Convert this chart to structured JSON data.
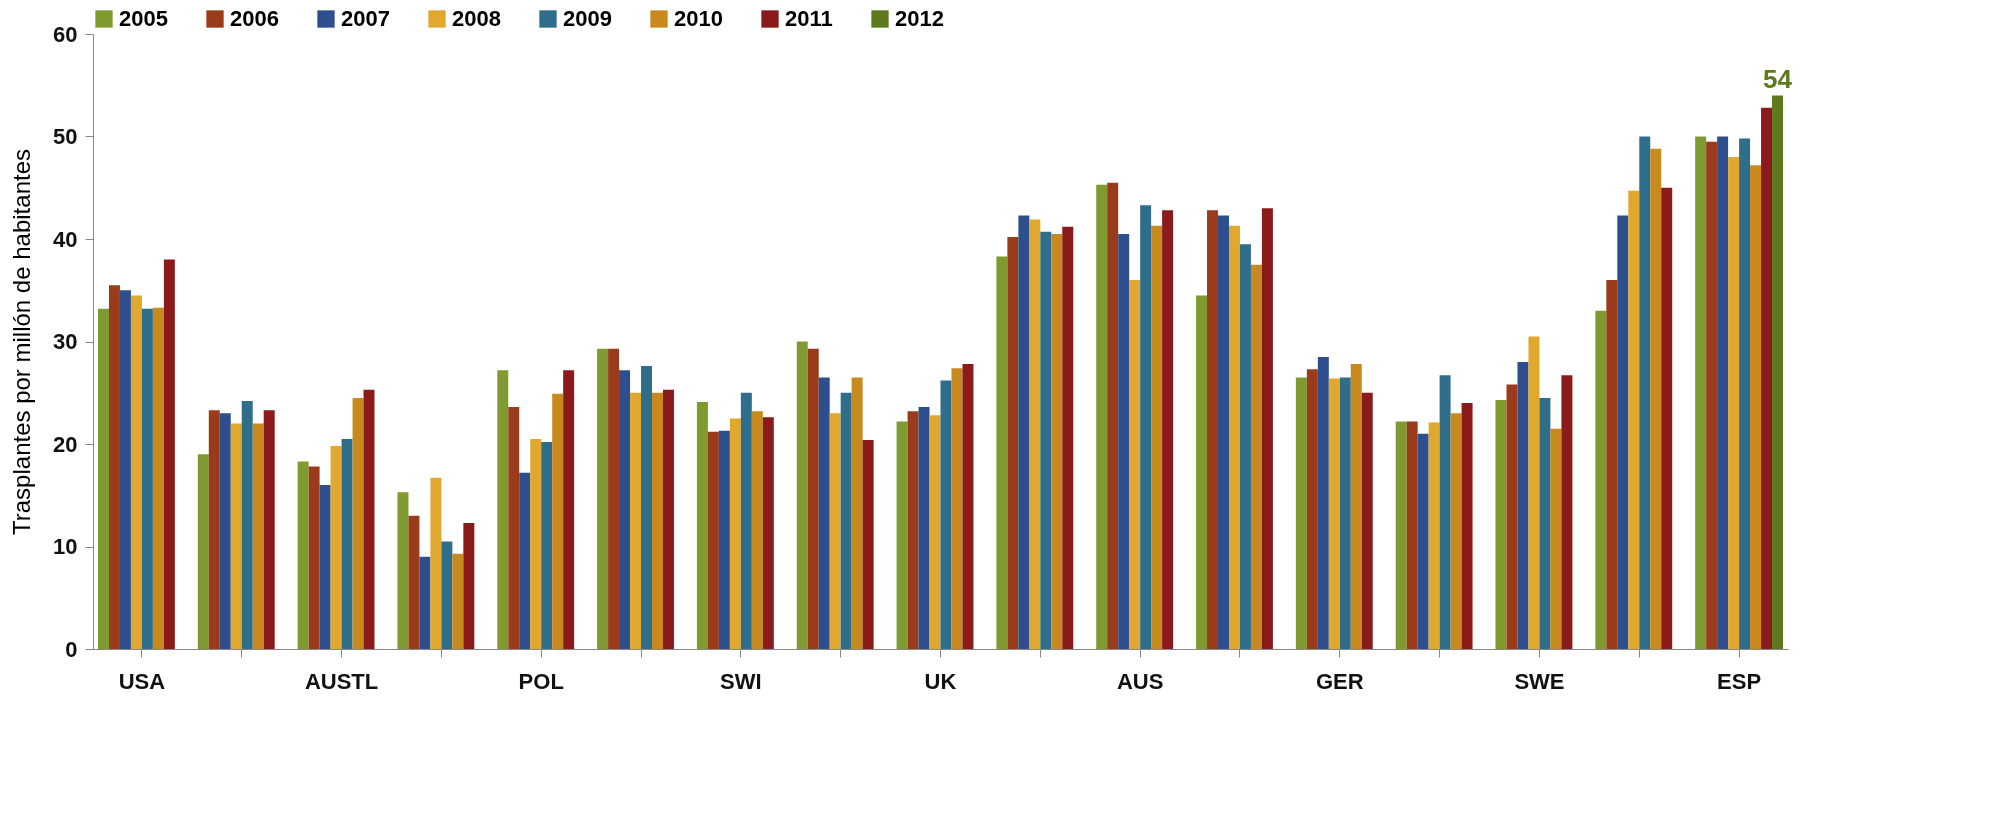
{
  "chart_data": {
    "type": "bar",
    "ylabel": "Trasplantes por millón de habitantes",
    "categories": [
      "USA",
      null,
      "AUSTL",
      null,
      "POL",
      null,
      "SWI",
      null,
      "UK",
      null,
      "AUS",
      null,
      "GER",
      null,
      "SWE",
      null,
      "ESP"
    ],
    "ylim": [
      0,
      60
    ],
    "yticks": [
      0,
      10,
      20,
      30,
      40,
      50,
      60
    ],
    "grid": false,
    "legend": "top",
    "series": [
      {
        "name": "2005",
        "color": "#7f9a2e",
        "values": [
          33.2,
          19,
          18.3,
          15.3,
          27.2,
          29.3,
          24.1,
          30,
          22.2,
          38.3,
          45.3,
          34.5,
          26.5,
          22.2,
          24.3,
          33,
          50
        ]
      },
      {
        "name": "2006",
        "color": "#9a3b1c",
        "values": [
          35.5,
          23.3,
          17.8,
          13,
          23.6,
          29.3,
          21.2,
          29.3,
          23.2,
          40.2,
          45.5,
          42.8,
          27.3,
          22.2,
          25.8,
          36,
          49.5
        ]
      },
      {
        "name": "2007",
        "color": "#2d4f8e",
        "values": [
          35,
          23,
          16,
          9,
          17.2,
          27.2,
          21.3,
          26.5,
          23.6,
          42.3,
          40.5,
          42.3,
          28.5,
          21,
          28,
          42.3,
          50
        ]
      },
      {
        "name": "2008",
        "color": "#e0a82e",
        "values": [
          34.5,
          22,
          19.8,
          16.7,
          20.5,
          25,
          22.5,
          23,
          22.8,
          41.9,
          36,
          41.3,
          26.4,
          22.1,
          30.5,
          44.7,
          48
        ]
      },
      {
        "name": "2009",
        "color": "#2e6e8a",
        "values": [
          33.2,
          24.2,
          20.5,
          10.5,
          20.2,
          27.6,
          25,
          25,
          26.2,
          40.7,
          43.3,
          39.5,
          26.5,
          26.7,
          24.5,
          50,
          49.8
        ]
      },
      {
        "name": "2010",
        "color": "#c88a1e",
        "values": [
          33.3,
          22,
          24.5,
          9.3,
          24.9,
          25,
          23.2,
          26.5,
          27.4,
          40.5,
          41.3,
          37.5,
          27.8,
          23,
          21.5,
          48.8,
          47.2
        ]
      },
      {
        "name": "2011",
        "color": "#8b1a1a",
        "values": [
          38,
          23.3,
          25.3,
          12.3,
          27.2,
          25.3,
          22.6,
          20.4,
          27.8,
          41.2,
          42.8,
          43,
          25,
          24,
          26.7,
          45,
          52.8
        ]
      },
      {
        "name": "2012",
        "color": "#5e7a1e",
        "values": [
          null,
          null,
          null,
          null,
          null,
          null,
          null,
          null,
          null,
          null,
          null,
          null,
          null,
          null,
          null,
          null,
          54
        ],
        "value_labels": [
          null,
          null,
          null,
          null,
          null,
          null,
          null,
          null,
          null,
          null,
          null,
          null,
          null,
          null,
          null,
          null,
          "54"
        ]
      }
    ]
  }
}
